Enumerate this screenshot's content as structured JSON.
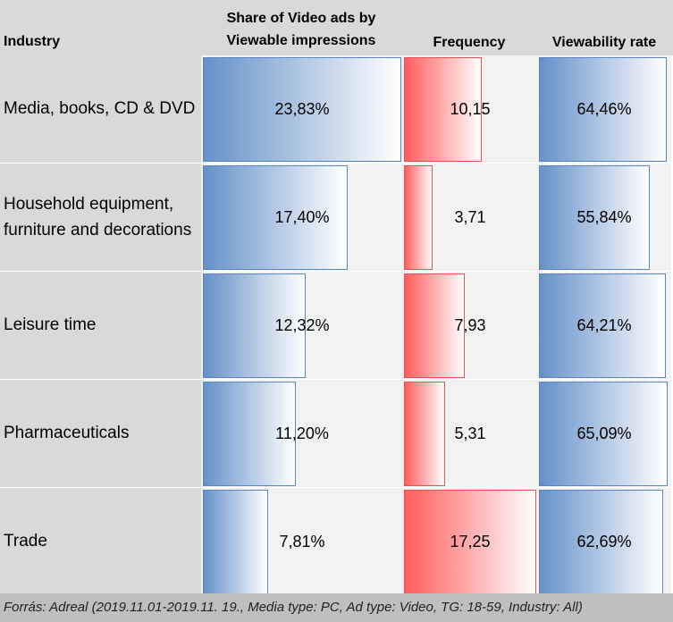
{
  "chart_data": {
    "type": "table",
    "columns": {
      "industry": "Industry",
      "share": "Share of Video ads by Viewable impressions",
      "frequency": "Frequency",
      "viewability": "Viewability rate"
    },
    "rows": [
      {
        "industry": "Media, books, CD & DVD",
        "share": 23.83,
        "share_label": "23,83%",
        "frequency": 10.15,
        "frequency_label": "10,15",
        "viewability": 64.46,
        "viewability_label": "64,46%"
      },
      {
        "industry": "Household equipment, furniture and decorations",
        "share": 17.4,
        "share_label": "17,40%",
        "frequency": 3.71,
        "frequency_label": "3,71",
        "viewability": 55.84,
        "viewability_label": "55,84%"
      },
      {
        "industry": "Leisure time",
        "share": 12.32,
        "share_label": "12,32%",
        "frequency": 7.93,
        "frequency_label": "7,93",
        "viewability": 64.21,
        "viewability_label": "64,21%"
      },
      {
        "industry": "Pharmaceuticals",
        "share": 11.2,
        "share_label": "11,20%",
        "frequency": 5.31,
        "frequency_label": "5,31",
        "viewability": 65.09,
        "viewability_label": "65,09%"
      },
      {
        "industry": "Trade",
        "share": 7.81,
        "share_label": "7,81%",
        "frequency": 17.25,
        "frequency_label": "17,25",
        "viewability": 62.69,
        "viewability_label": "62,69%"
      }
    ],
    "source": "Forrás: Adreal (2019.11.01-2019.11. 19., Media type: PC, Ad type: Video, TG: 18-59, Industry: All)",
    "colors": {
      "share": "#6591c9",
      "frequency": "#ff5d5d",
      "viewability": "#6591c9"
    }
  }
}
